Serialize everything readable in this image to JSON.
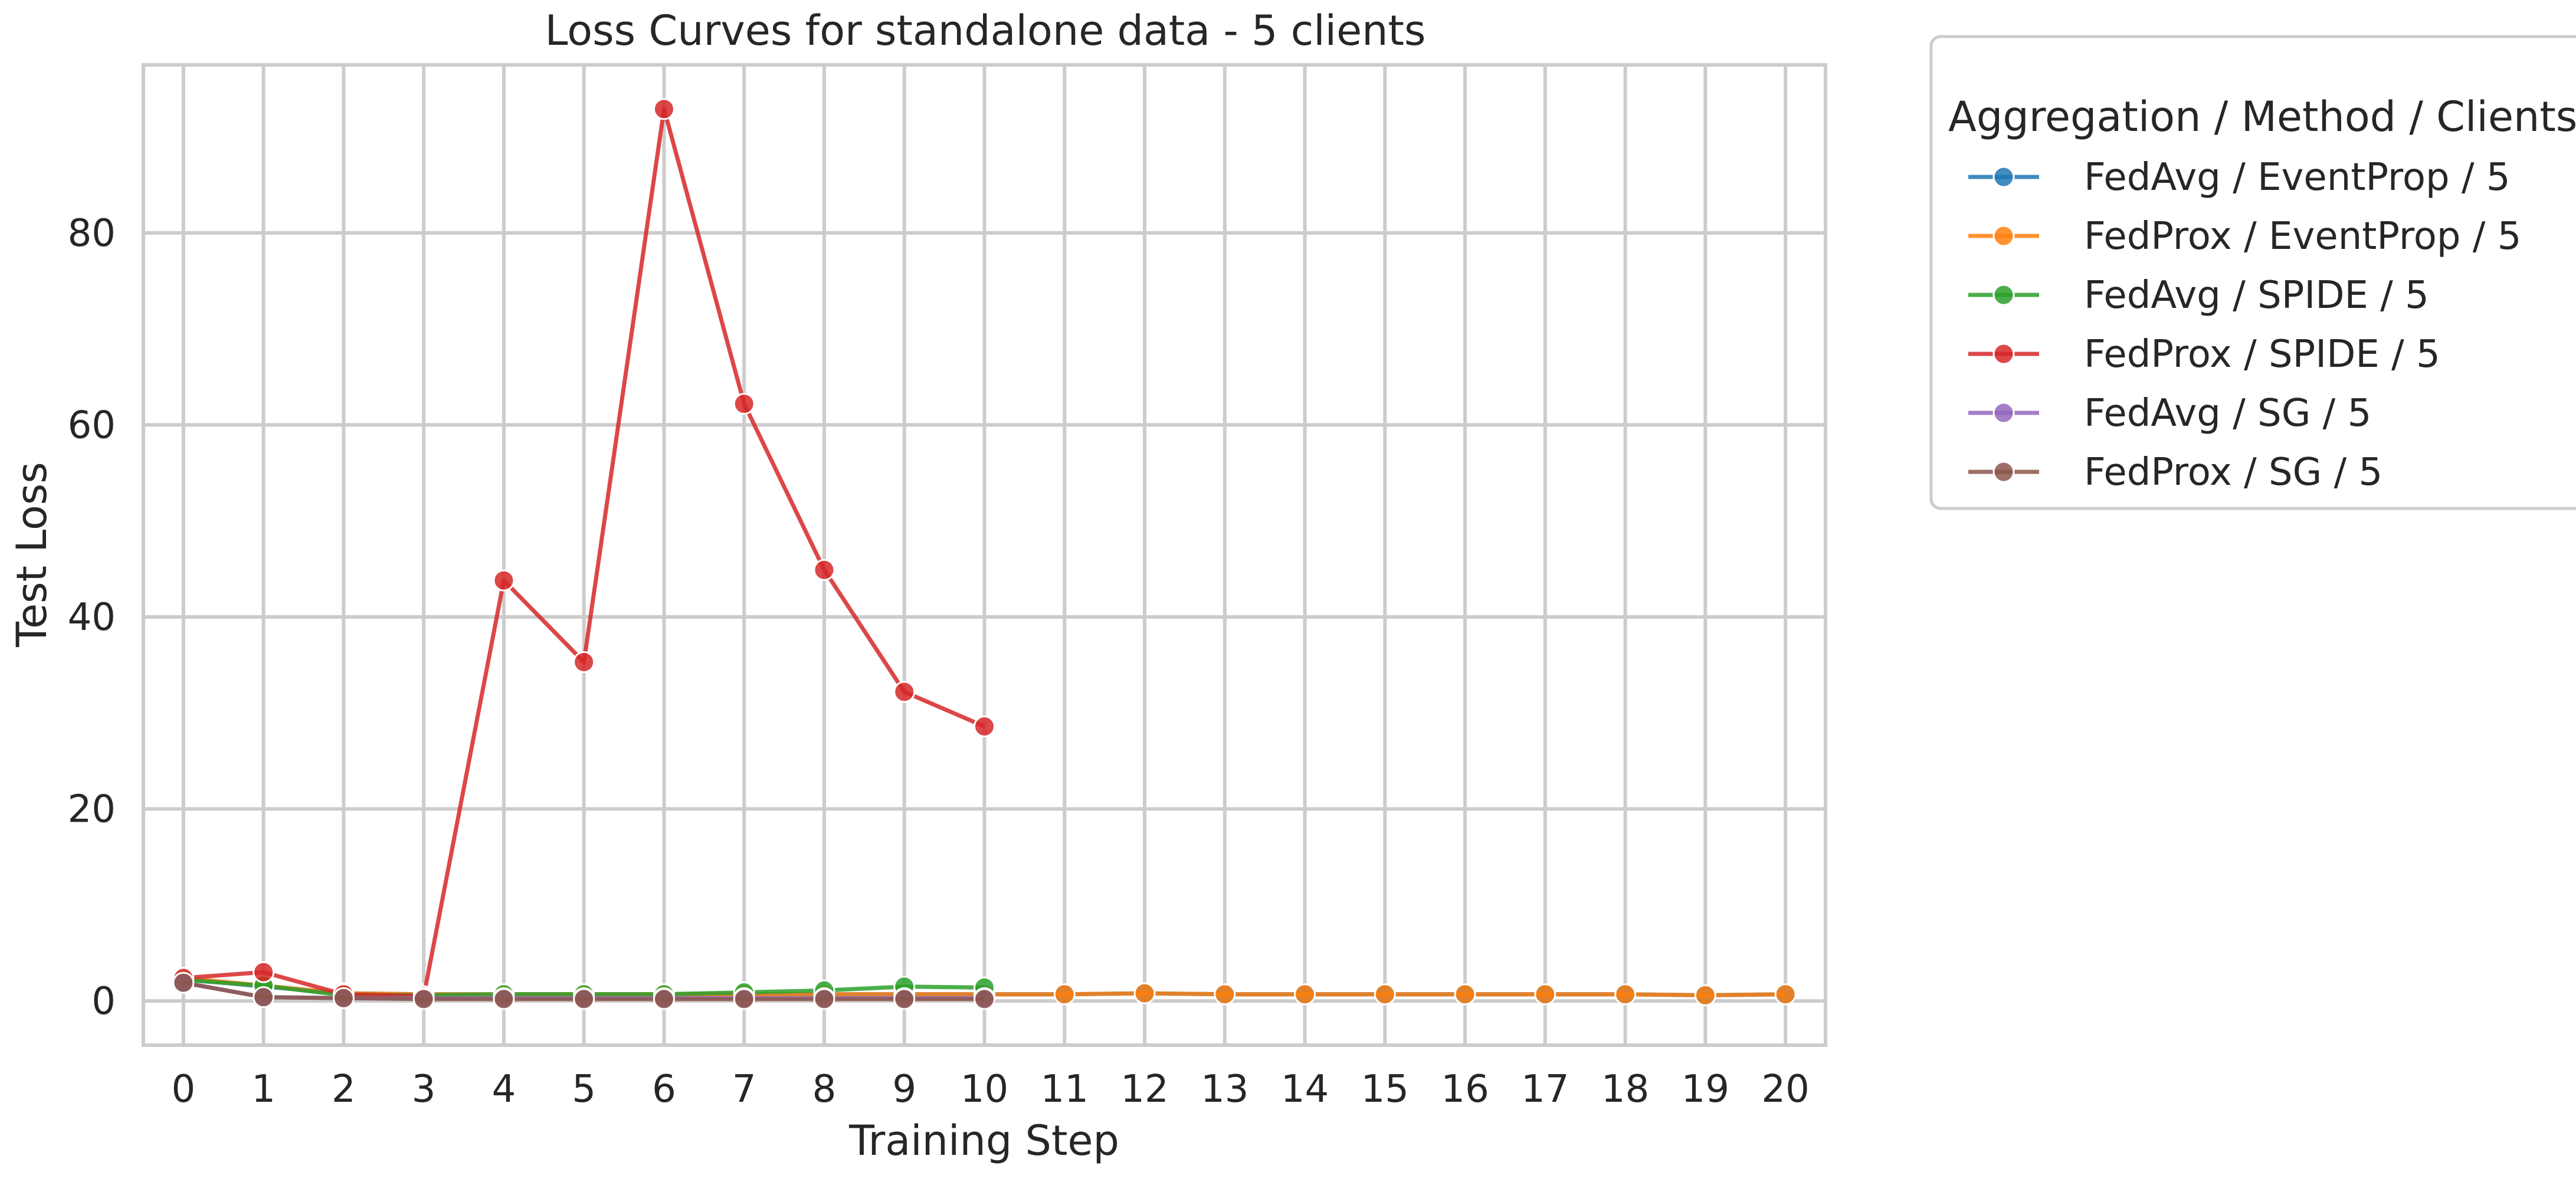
{
  "chart_data": {
    "type": "line",
    "title": "Loss Curves for standalone data - 5 clients",
    "xlabel": "Training Step",
    "ylabel": "Test Loss",
    "xlim": [
      -0.5,
      20.5
    ],
    "ylim": [
      -4.6,
      97.5
    ],
    "x_ticks": [
      0,
      1,
      2,
      3,
      4,
      5,
      6,
      7,
      8,
      9,
      10,
      11,
      12,
      13,
      14,
      15,
      16,
      17,
      18,
      19,
      20
    ],
    "y_ticks": [
      0,
      20,
      40,
      60,
      80
    ],
    "grid": true,
    "legend": {
      "title": "Aggregation / Method / Clients",
      "placement": "outside-top-right"
    },
    "series": [
      {
        "name": "FedAvg / EventProp / 5",
        "color": "#1f77b4",
        "x": [
          0,
          1,
          2,
          3,
          4,
          5,
          6,
          7,
          8,
          9,
          10,
          11,
          12,
          13,
          14,
          15,
          16,
          17,
          18,
          19,
          20
        ],
        "y": [
          2.3,
          1.5,
          0.8,
          0.7,
          0.7,
          0.7,
          0.7,
          0.7,
          0.7,
          0.7,
          0.7,
          0.7,
          0.8,
          0.7,
          0.7,
          0.7,
          0.7,
          0.7,
          0.7,
          0.6,
          0.7
        ]
      },
      {
        "name": "FedProx / EventProp / 5",
        "color": "#ff7f0e",
        "x": [
          0,
          1,
          2,
          3,
          4,
          5,
          6,
          7,
          8,
          9,
          10,
          11,
          12,
          13,
          14,
          15,
          16,
          17,
          18,
          19,
          20
        ],
        "y": [
          2.4,
          1.6,
          0.8,
          0.7,
          0.7,
          0.7,
          0.7,
          0.7,
          0.7,
          0.7,
          0.7,
          0.7,
          0.8,
          0.7,
          0.7,
          0.7,
          0.7,
          0.7,
          0.7,
          0.6,
          0.7
        ]
      },
      {
        "name": "FedAvg / SPIDE / 5",
        "color": "#2ca02c",
        "x": [
          0,
          1,
          2,
          3,
          4,
          5,
          6,
          7,
          8,
          9,
          10
        ],
        "y": [
          2.2,
          1.6,
          0.6,
          0.6,
          0.7,
          0.7,
          0.7,
          0.9,
          1.1,
          1.5,
          1.4
        ]
      },
      {
        "name": "FedProx / SPIDE / 5",
        "color": "#d62728",
        "x": [
          0,
          1,
          2,
          3,
          4,
          5,
          6,
          7,
          8,
          9,
          10
        ],
        "y": [
          2.4,
          3.0,
          0.7,
          0.5,
          43.8,
          35.3,
          92.9,
          62.2,
          44.9,
          32.2,
          28.6
        ]
      },
      {
        "name": "FedAvg / SG / 5",
        "color": "#9467bd",
        "x": [
          0,
          1,
          2,
          3,
          4,
          5,
          6,
          7,
          8,
          9,
          10
        ],
        "y": [
          1.9,
          0.4,
          0.3,
          0.3,
          0.3,
          0.3,
          0.3,
          0.3,
          0.3,
          0.3,
          0.3
        ]
      },
      {
        "name": "FedProx / SG / 5",
        "color": "#8c564b",
        "x": [
          0,
          1,
          2,
          3,
          4,
          5,
          6,
          7,
          8,
          9,
          10
        ],
        "y": [
          1.9,
          0.4,
          0.3,
          0.2,
          0.2,
          0.2,
          0.2,
          0.2,
          0.2,
          0.2,
          0.2
        ]
      }
    ]
  }
}
